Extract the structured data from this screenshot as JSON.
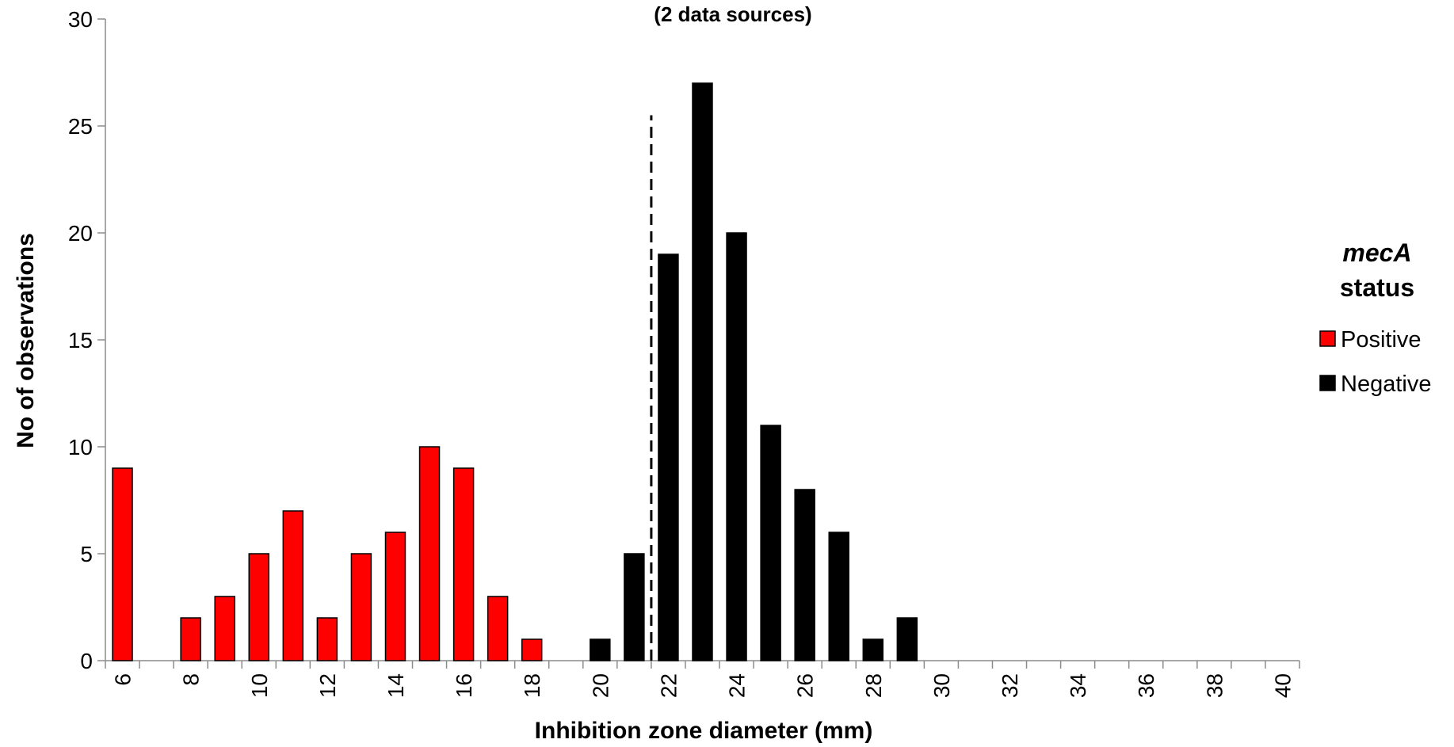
{
  "chart_data": {
    "type": "bar",
    "title": "(2 data sources)",
    "xlabel": "Inhibition zone diameter (mm)",
    "ylabel": "No of observations",
    "ylim": [
      0,
      30
    ],
    "yticks": [
      0,
      5,
      10,
      15,
      20,
      25,
      30
    ],
    "xticks": [
      6,
      8,
      10,
      12,
      14,
      16,
      18,
      20,
      22,
      24,
      26,
      28,
      30,
      32,
      34,
      36,
      38,
      40
    ],
    "x_categories": [
      6,
      7,
      8,
      9,
      10,
      11,
      12,
      13,
      14,
      15,
      16,
      17,
      18,
      19,
      20,
      21,
      22,
      23,
      24,
      25,
      26,
      27,
      28,
      29,
      30,
      31,
      32,
      33,
      34,
      35,
      36,
      37,
      38,
      39,
      40
    ],
    "breakpoint_x": 21.5,
    "breakpoint_ymax": 25.5,
    "grid": false,
    "legend": {
      "placement": "right",
      "title_italic": "mecA",
      "title_rest": "status"
    },
    "series": [
      {
        "name": "Positive",
        "color": "#ff0000",
        "points": [
          [
            6,
            9
          ],
          [
            8,
            2
          ],
          [
            9,
            3
          ],
          [
            10,
            5
          ],
          [
            11,
            7
          ],
          [
            12,
            2
          ],
          [
            13,
            5
          ],
          [
            14,
            6
          ],
          [
            15,
            10
          ],
          [
            16,
            9
          ],
          [
            17,
            3
          ],
          [
            18,
            1
          ]
        ]
      },
      {
        "name": "Negative",
        "color": "#000000",
        "points": [
          [
            20,
            1
          ],
          [
            21,
            5
          ],
          [
            22,
            19
          ],
          [
            23,
            27
          ],
          [
            24,
            20
          ],
          [
            25,
            11
          ],
          [
            26,
            8
          ],
          [
            27,
            6
          ],
          [
            28,
            1
          ],
          [
            29,
            2
          ]
        ]
      }
    ]
  }
}
